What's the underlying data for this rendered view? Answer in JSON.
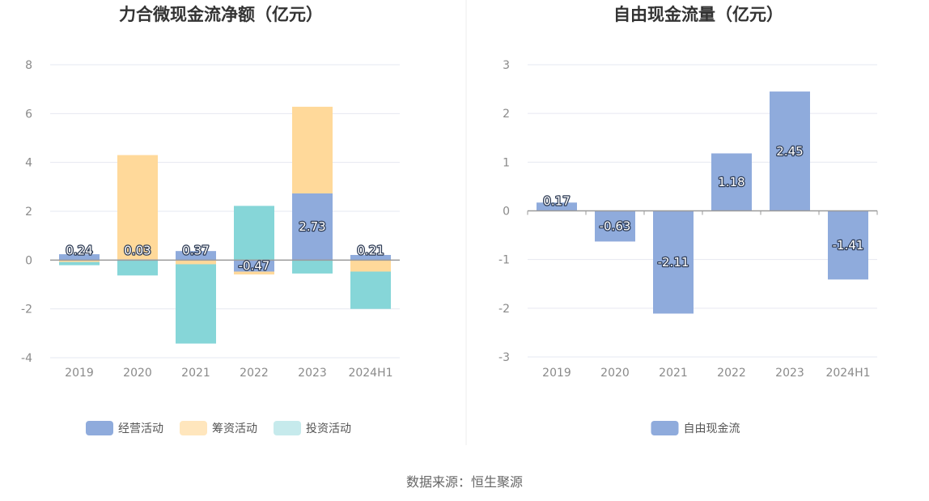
{
  "colors": {
    "operating": "#8fabdc",
    "financing": "#ffd99a",
    "investing": "#86d6d8",
    "grid": "#e6e8f0",
    "axis": "#9a9a9a"
  },
  "source": "数据来源：恒生聚源",
  "chart_data": [
    {
      "type": "bar",
      "stacked": true,
      "title": "力合微现金流净额（亿元）",
      "categories": [
        "2019",
        "2020",
        "2021",
        "2022",
        "2023",
        "2024H1"
      ],
      "ylim": [
        -4,
        8
      ],
      "yticks": [
        -4,
        -2,
        0,
        2,
        4,
        6,
        8
      ],
      "series": [
        {
          "name": "经营活动",
          "values": [
            0.24,
            0.03,
            0.37,
            -0.47,
            2.73,
            0.21
          ]
        },
        {
          "name": "筹资活动",
          "values": [
            -0.08,
            4.27,
            -0.17,
            -0.12,
            3.55,
            -0.47
          ]
        },
        {
          "name": "投资活动",
          "values": [
            -0.13,
            -0.63,
            -3.25,
            2.22,
            -0.55,
            -1.53
          ]
        }
      ],
      "data_labels": [
        "0.24",
        "0.03",
        "0.37",
        "-0.47",
        "2.73",
        "0.21"
      ],
      "legend": "bottom",
      "grid": true
    },
    {
      "type": "bar",
      "title": "自由现金流量（亿元）",
      "categories": [
        "2019",
        "2020",
        "2021",
        "2022",
        "2023",
        "2024H1"
      ],
      "ylim": [
        -3,
        3
      ],
      "yticks": [
        -3,
        -2,
        -1,
        0,
        1,
        2,
        3
      ],
      "series": [
        {
          "name": "自由现金流",
          "values": [
            0.17,
            -0.63,
            -2.11,
            1.18,
            2.45,
            -1.41
          ]
        }
      ],
      "data_labels": [
        "0.17",
        "-0.63",
        "-2.11",
        "1.18",
        "2.45",
        "-1.41"
      ],
      "legend": "bottom",
      "grid": true
    }
  ]
}
